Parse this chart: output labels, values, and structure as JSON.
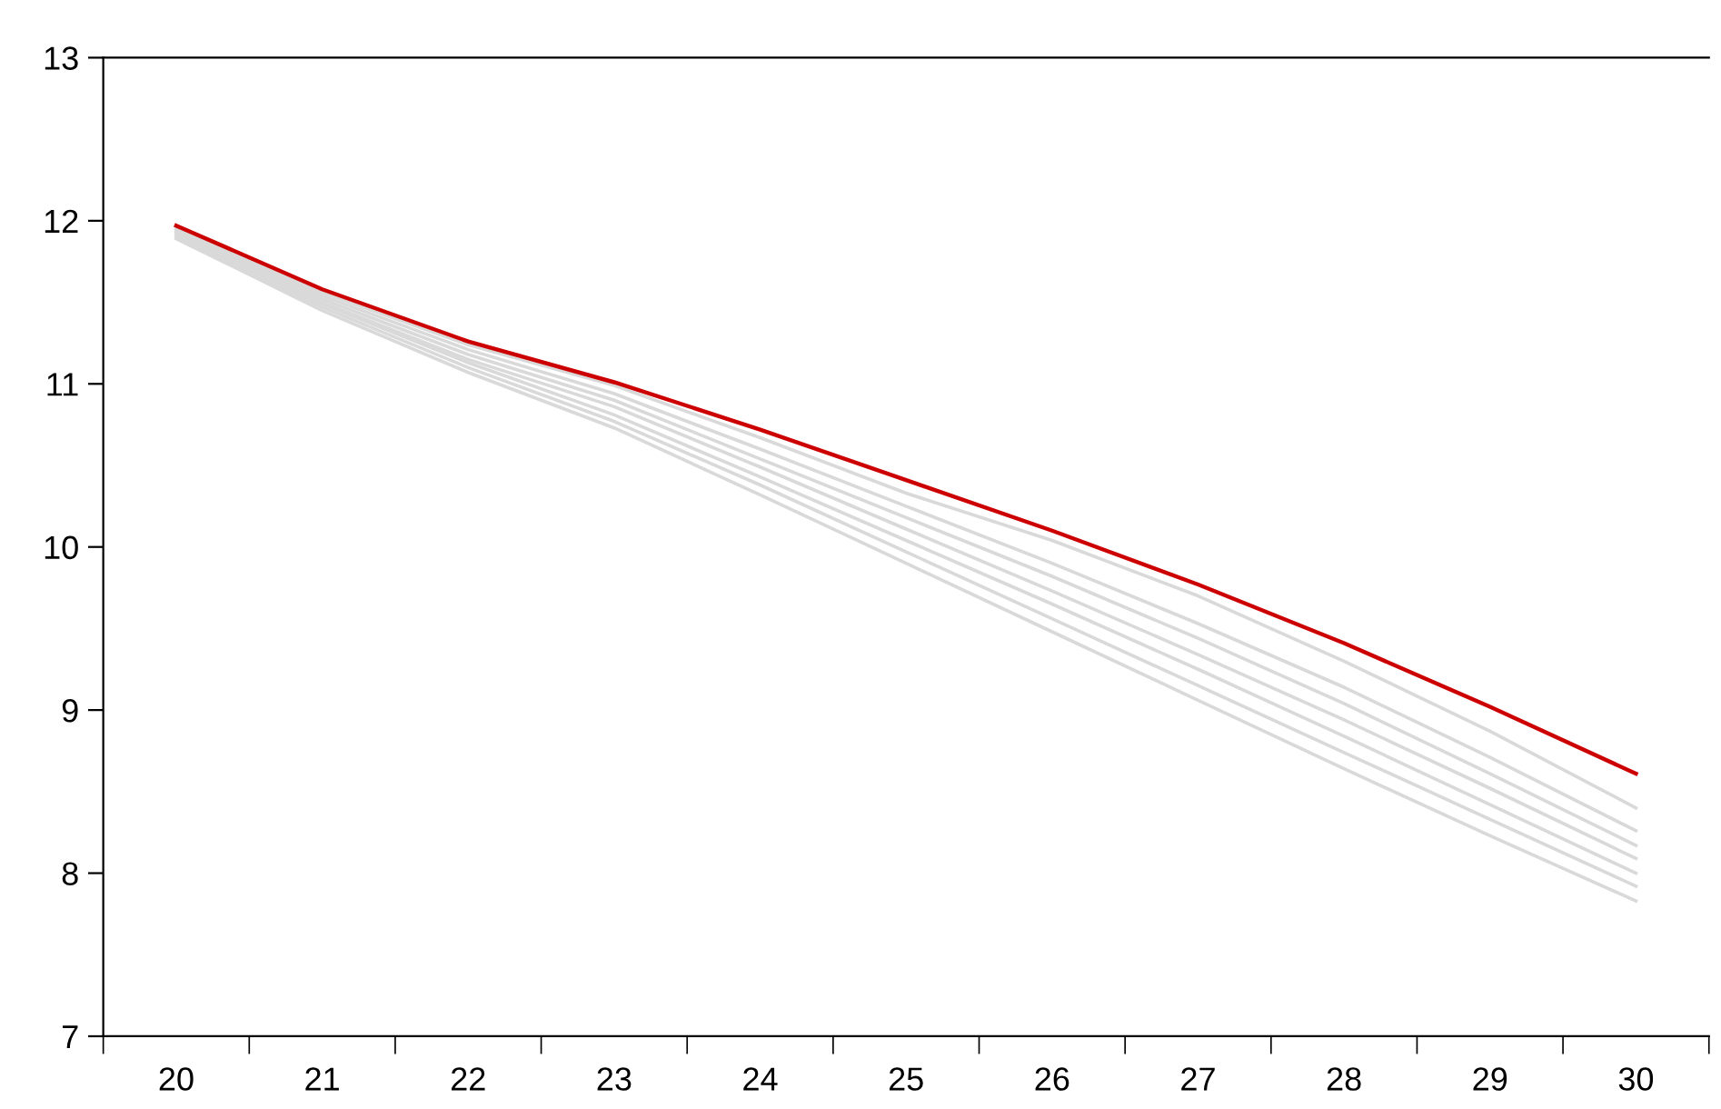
{
  "chart_data": {
    "type": "line",
    "x": [
      20,
      21,
      22,
      23,
      24,
      25,
      26,
      27,
      28,
      29,
      30
    ],
    "series": [
      {
        "color": "#d9d9d9",
        "values": [
          11.95,
          11.56,
          11.24,
          10.99,
          10.67,
          10.33,
          10.04,
          9.7,
          9.3,
          8.87,
          8.4
        ]
      },
      {
        "color": "#d9d9d9",
        "values": [
          11.94,
          11.54,
          11.21,
          10.94,
          10.6,
          10.25,
          9.9,
          9.53,
          9.14,
          8.71,
          8.26
        ]
      },
      {
        "color": "#d9d9d9",
        "values": [
          11.93,
          11.52,
          11.18,
          10.9,
          10.54,
          10.18,
          9.82,
          9.44,
          9.04,
          8.61,
          8.17
        ]
      },
      {
        "color": "#d9d9d9",
        "values": [
          11.92,
          11.5,
          11.15,
          10.86,
          10.49,
          10.11,
          9.73,
          9.34,
          8.94,
          8.52,
          8.09
        ]
      },
      {
        "color": "#d9d9d9",
        "values": [
          11.91,
          11.49,
          11.13,
          10.81,
          10.43,
          10.04,
          9.65,
          9.25,
          8.84,
          8.42,
          8.0
        ]
      },
      {
        "color": "#d9d9d9",
        "values": [
          11.9,
          11.47,
          11.1,
          10.77,
          10.38,
          9.97,
          9.56,
          9.15,
          8.74,
          8.33,
          7.92
        ]
      },
      {
        "color": "#d9d9d9",
        "values": [
          11.89,
          11.45,
          11.07,
          10.73,
          10.32,
          9.9,
          9.48,
          9.06,
          8.64,
          8.23,
          7.83
        ]
      },
      {
        "color": "#cc0000",
        "values": [
          11.97,
          11.58,
          11.26,
          11.01,
          10.72,
          10.41,
          10.1,
          9.77,
          9.41,
          9.02,
          8.61
        ]
      }
    ],
    "xlim": [
      19.5,
      30.5
    ],
    "xticks": [
      {
        "value": 19.5,
        "label": null
      },
      20,
      {
        "value": 20.5,
        "label": null
      },
      21,
      {
        "value": 21.5,
        "label": null
      },
      22,
      {
        "value": 22.5,
        "label": null
      },
      23,
      {
        "value": 23.5,
        "label": null
      },
      24,
      {
        "value": 24.5,
        "label": null
      },
      25,
      {
        "value": 25.5,
        "label": null
      },
      26,
      {
        "value": 26.5,
        "label": null
      },
      27,
      {
        "value": 27.5,
        "label": null
      },
      28,
      {
        "value": 28.5,
        "label": null
      },
      29,
      {
        "value": 29.5,
        "label": null
      },
      30,
      {
        "value": 30.5,
        "label": null
      }
    ],
    "ylim": [
      7,
      13
    ],
    "yticks": [
      7,
      8,
      9,
      10,
      11,
      12,
      13
    ],
    "grid": false,
    "legend": false,
    "marker": "none",
    "line_style": "solid"
  }
}
